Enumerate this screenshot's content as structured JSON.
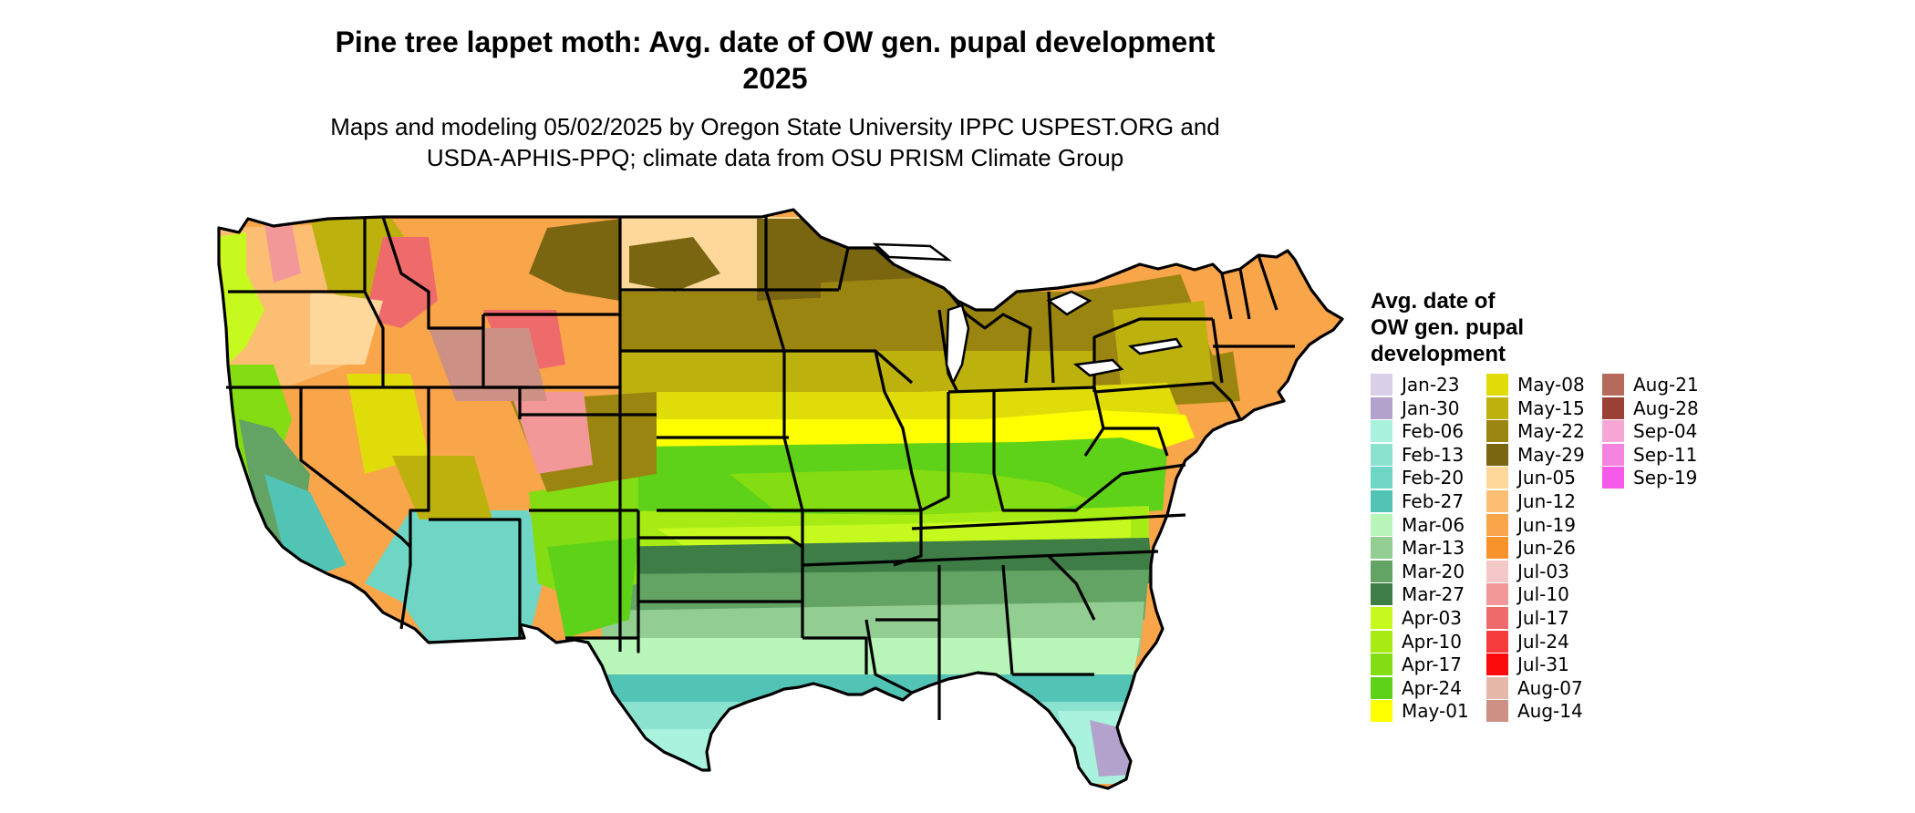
{
  "title_line1": "Pine tree lappet moth: Avg. date of OW gen. pupal development",
  "title_line2": "2025",
  "subtitle_line1": "Maps and modeling 05/02/2025 by Oregon State University IPPC USPEST.ORG and",
  "subtitle_line2": "USDA-APHIS-PPQ; climate data from OSU PRISM Climate Group",
  "legend": {
    "title_lines": [
      "Avg. date of",
      "OW gen. pupal",
      "development"
    ],
    "columns": [
      [
        {
          "label": "Jan-23",
          "color": "#d9d0e8"
        },
        {
          "label": "Jan-30",
          "color": "#b3a3cc"
        },
        {
          "label": "Feb-06",
          "color": "#a8f2de"
        },
        {
          "label": "Feb-13",
          "color": "#8be3cf"
        },
        {
          "label": "Feb-20",
          "color": "#6fd6c6"
        },
        {
          "label": "Feb-27",
          "color": "#52c4b6"
        },
        {
          "label": "Mar-06",
          "color": "#b8f5b8"
        },
        {
          "label": "Mar-13",
          "color": "#92cd92"
        },
        {
          "label": "Mar-20",
          "color": "#63a363"
        },
        {
          "label": "Mar-27",
          "color": "#3e7d46"
        },
        {
          "label": "Apr-03",
          "color": "#c6fa1e"
        },
        {
          "label": "Apr-10",
          "color": "#a6ec14"
        },
        {
          "label": "Apr-17",
          "color": "#84dc12"
        },
        {
          "label": "Apr-24",
          "color": "#5ed218"
        },
        {
          "label": "May-01",
          "color": "#ffff00"
        }
      ],
      [
        {
          "label": "May-08",
          "color": "#e0dc0a"
        },
        {
          "label": "May-15",
          "color": "#bdb10e"
        },
        {
          "label": "May-22",
          "color": "#9b8511"
        },
        {
          "label": "May-29",
          "color": "#7a6510"
        },
        {
          "label": "Jun-05",
          "color": "#fdd89a"
        },
        {
          "label": "Jun-12",
          "color": "#fcbe72"
        },
        {
          "label": "Jun-19",
          "color": "#f9a54a"
        },
        {
          "label": "Jun-26",
          "color": "#f8932c"
        },
        {
          "label": "Jul-03",
          "color": "#f5c8c8"
        },
        {
          "label": "Jul-10",
          "color": "#f29898"
        },
        {
          "label": "Jul-17",
          "color": "#ef6a6a"
        },
        {
          "label": "Jul-24",
          "color": "#f53b3b"
        },
        {
          "label": "Jul-31",
          "color": "#fa0a0a"
        },
        {
          "label": "Aug-07",
          "color": "#e6b8aa"
        },
        {
          "label": "Aug-14",
          "color": "#cd9085"
        }
      ],
      [
        {
          "label": "Aug-21",
          "color": "#b66a5a"
        },
        {
          "label": "Aug-28",
          "color": "#9a4034"
        },
        {
          "label": "Sep-04",
          "color": "#f7a6d6"
        },
        {
          "label": "Sep-11",
          "color": "#f583e0"
        },
        {
          "label": "Sep-19",
          "color": "#f55ae8"
        }
      ]
    ]
  }
}
